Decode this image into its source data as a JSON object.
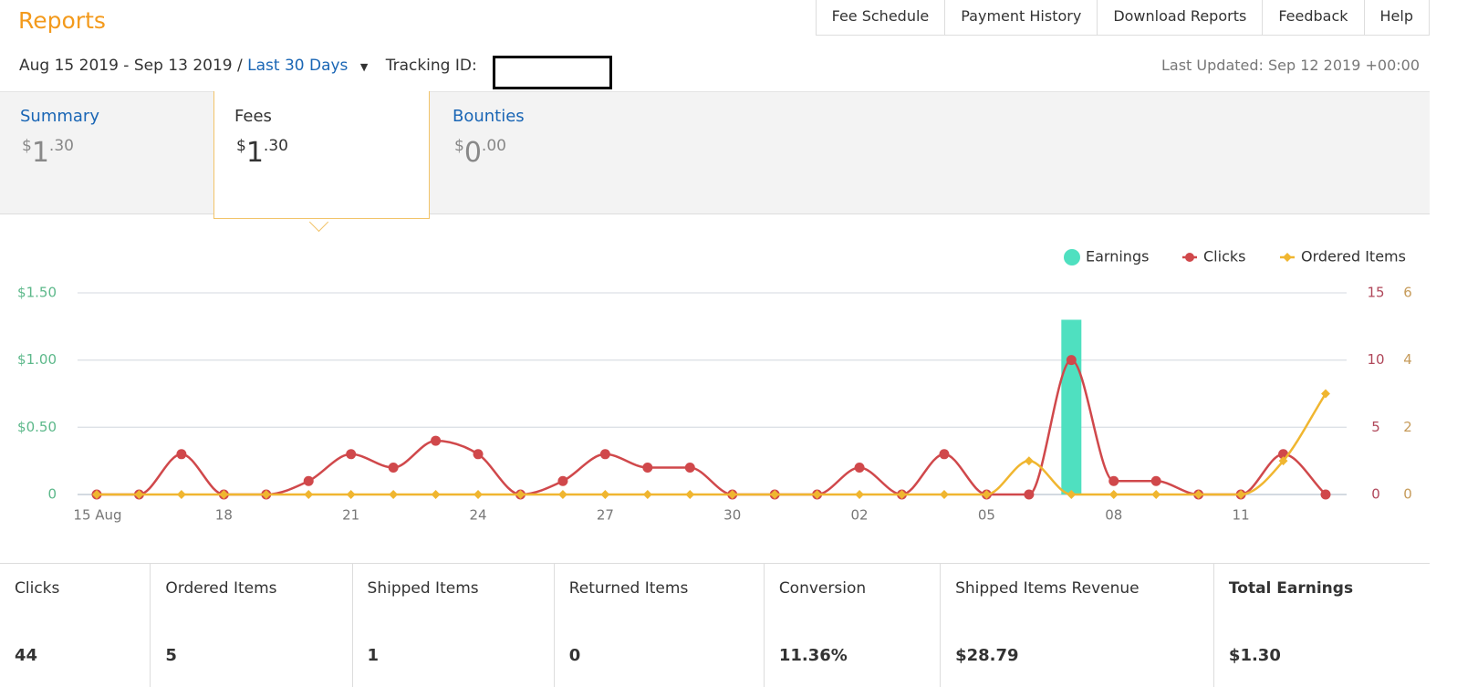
{
  "header": {
    "title": "Reports",
    "date_range": "Aug 15 2019 - Sep 13 2019 /",
    "range_link": "Last 30 Days",
    "tracking_label": "Tracking ID:",
    "last_updated": "Last Updated: Sep 12 2019 +00:00"
  },
  "nav": [
    "Fee Schedule",
    "Payment History",
    "Download Reports",
    "Feedback",
    "Help"
  ],
  "tabs": [
    {
      "label": "Summary",
      "currency": "$",
      "whole": "1",
      "cents": ".30"
    },
    {
      "label": "Fees",
      "currency": "$",
      "whole": "1",
      "cents": ".30"
    },
    {
      "label": "Bounties",
      "currency": "$",
      "whole": "0",
      "cents": ".00"
    }
  ],
  "chart_data": {
    "type": "combo",
    "categories": [
      "15 Aug",
      null,
      null,
      "18",
      null,
      null,
      "21",
      null,
      null,
      "24",
      null,
      null,
      "27",
      null,
      null,
      "30",
      null,
      null,
      "02",
      null,
      null,
      "05",
      null,
      null,
      "08",
      null,
      null,
      "11",
      null,
      null
    ],
    "series": [
      {
        "name": "Earnings",
        "type": "bar",
        "color": "#4fe0c0",
        "axis": "y",
        "values": [
          0,
          0,
          0,
          0,
          0,
          0,
          0,
          0,
          0,
          0,
          0,
          0,
          0,
          0,
          0,
          0,
          0,
          0,
          0,
          0,
          0,
          0,
          0,
          1.3,
          0,
          0,
          0,
          0,
          0,
          0
        ]
      },
      {
        "name": "Clicks",
        "type": "line",
        "color": "#d0484b",
        "axis": "y2",
        "values": [
          0,
          0,
          3,
          0,
          0,
          1,
          3,
          2,
          4,
          3,
          0,
          1,
          3,
          2,
          2,
          0,
          0,
          0,
          2,
          0,
          3,
          0,
          0,
          10,
          1,
          1,
          0,
          0,
          3,
          0
        ]
      },
      {
        "name": "Ordered Items",
        "type": "line",
        "color": "#f0b630",
        "axis": "y3",
        "values": [
          0,
          0,
          0,
          0,
          0,
          0,
          0,
          0,
          0,
          0,
          0,
          0,
          0,
          0,
          0,
          0,
          0,
          0,
          0,
          0,
          0,
          0,
          1,
          0,
          0,
          0,
          0,
          0,
          1,
          3
        ]
      }
    ],
    "ylim": [
      0,
      1.5
    ],
    "yticks": [
      {
        "value": 0,
        "label": "0"
      },
      {
        "value": 0.5,
        "label": "$0.50"
      },
      {
        "value": 1,
        "label": "$1.00"
      },
      {
        "value": 1.5,
        "label": "$1.50"
      }
    ],
    "y2lim": [
      0,
      15
    ],
    "y2ticks": [
      0,
      5,
      10,
      15
    ],
    "y3lim": [
      0,
      6
    ],
    "y3ticks": [
      0,
      2,
      4,
      6
    ],
    "grid": true,
    "legend": "top-right"
  },
  "stats": [
    {
      "label": "Clicks",
      "value": "44"
    },
    {
      "label": "Ordered Items",
      "value": "5"
    },
    {
      "label": "Shipped Items",
      "value": "1"
    },
    {
      "label": "Returned Items",
      "value": "0"
    },
    {
      "label": "Conversion",
      "value": "11.36%"
    },
    {
      "label": "Shipped Items Revenue",
      "value": "$28.79"
    },
    {
      "label": "Total Earnings",
      "value": "$1.30"
    }
  ]
}
